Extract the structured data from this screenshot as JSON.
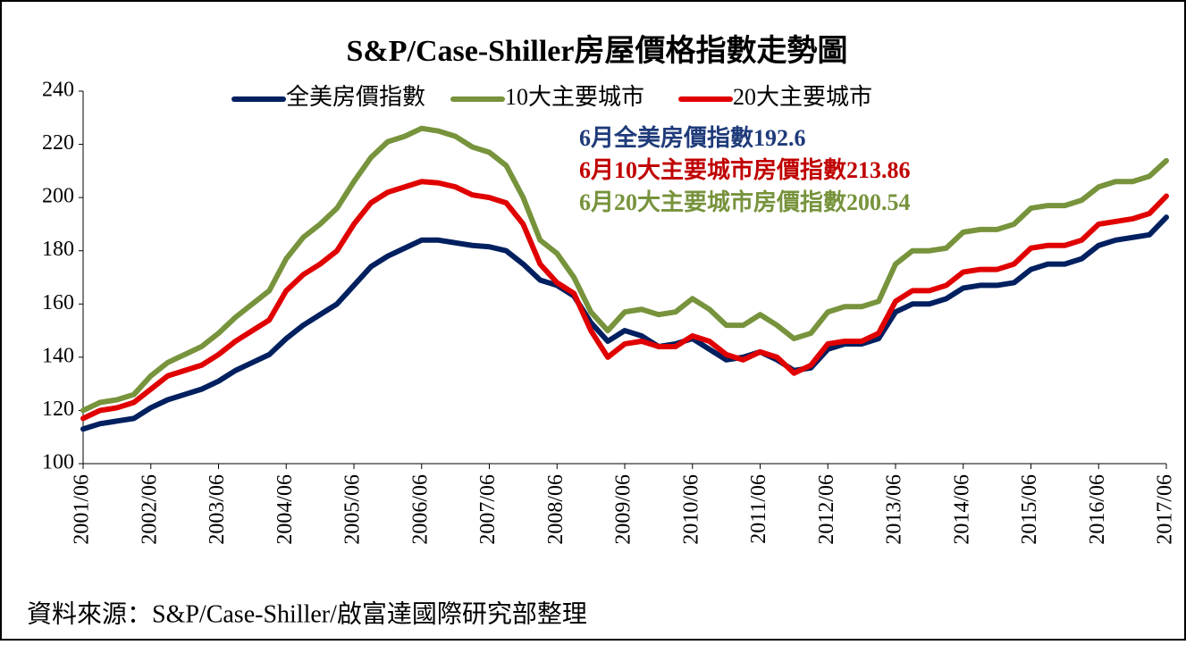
{
  "chart_data": {
    "type": "line",
    "title": "S&P/Case-Shiller房屋價格指數走勢圖",
    "annotations": [
      {
        "text": "6月全美房價指數192.6",
        "color": "#1f3b7a"
      },
      {
        "text": "6月10大主要城市房價指數213.86",
        "color": "#c00000"
      },
      {
        "text": "6月20大主要城市房價指數200.54",
        "color": "#77933c"
      }
    ],
    "source": "資料來源：S&P/Case-Shiller/啟富達國際研究部整理",
    "categories": [
      "2001/06",
      null,
      null,
      null,
      "2002/06",
      null,
      null,
      null,
      "2003/06",
      null,
      null,
      null,
      "2004/06",
      null,
      null,
      null,
      "2005/06",
      null,
      null,
      null,
      "2006/06",
      null,
      null,
      null,
      "2007/06",
      null,
      null,
      null,
      "2008/06",
      null,
      null,
      null,
      "2009/06",
      null,
      null,
      null,
      "2010/06",
      null,
      null,
      null,
      "2011/06",
      null,
      null,
      null,
      "2012/06",
      null,
      null,
      null,
      "2013/06",
      null,
      null,
      null,
      "2014/06",
      null,
      null,
      null,
      "2015/06",
      null,
      null,
      null,
      "2016/06",
      null,
      null,
      null,
      "2017/06"
    ],
    "series": [
      {
        "name": "全美房價指數",
        "color": "#002060",
        "values": [
          113,
          115,
          116,
          117,
          121,
          124,
          126,
          128,
          131,
          135,
          138,
          141,
          147,
          152,
          156,
          160,
          167,
          174,
          178,
          181,
          184,
          184,
          183,
          182,
          181.5,
          180,
          175,
          169,
          167,
          163,
          153,
          146,
          150,
          148,
          144,
          145,
          147,
          143,
          139,
          140,
          142,
          139,
          135,
          136,
          143,
          145,
          145,
          147,
          157,
          160,
          160,
          162,
          166,
          167,
          167,
          168,
          173,
          175,
          175,
          177,
          182,
          184,
          185,
          186,
          192.6
        ]
      },
      {
        "name": "10大主要城市",
        "color": "#77933c",
        "values": [
          120,
          123,
          124,
          126,
          133,
          138,
          141,
          144,
          149,
          155,
          160,
          165,
          177,
          185,
          190,
          196,
          206,
          215,
          221,
          223,
          226,
          225,
          223,
          219,
          217,
          212,
          200,
          184,
          179,
          170,
          157,
          150,
          157,
          158,
          156,
          157,
          162,
          158,
          152,
          152,
          156,
          152,
          147,
          149,
          157,
          159,
          159,
          161,
          175,
          180,
          180,
          181,
          187,
          188,
          188,
          190,
          196,
          197,
          197,
          199,
          204,
          206,
          206,
          208,
          213.86
        ]
      },
      {
        "name": "20大主要城市",
        "color": "#e00000",
        "values": [
          117,
          120,
          121,
          123,
          128,
          133,
          135,
          137,
          141,
          146,
          150,
          154,
          165,
          171,
          175,
          180,
          190,
          198,
          202,
          204,
          206,
          205.5,
          204,
          201,
          200,
          198,
          190,
          175,
          168,
          164,
          150,
          140,
          145,
          146,
          144,
          144,
          148,
          146,
          141,
          139,
          142,
          140,
          134,
          137,
          145,
          146,
          146,
          149,
          161,
          165,
          165,
          167,
          172,
          173,
          173,
          175,
          181,
          182,
          182,
          184,
          190,
          191,
          192,
          194,
          200.54
        ]
      }
    ],
    "ylim": [
      100,
      240
    ],
    "yticks": [
      100,
      120,
      140,
      160,
      180,
      200,
      220,
      240
    ]
  }
}
